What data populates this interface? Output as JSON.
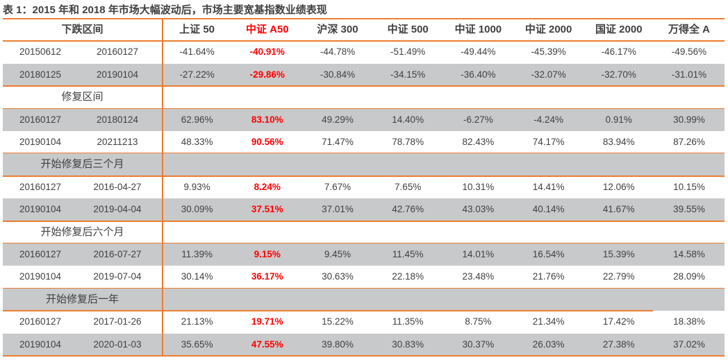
{
  "title": "表 1：2015 年和 2018 年市场大幅波动后，市场主要宽基指数业绩表现",
  "colors": {
    "accent_line": "#ed7d31",
    "row_shade": "#c8c9cb",
    "highlight": "#ff0000",
    "text": "#404040"
  },
  "header": {
    "period_label": "下跌区间",
    "columns": [
      "上证 50",
      "中证 A50",
      "沪深 300",
      "中证 500",
      "中证 1000",
      "中证 2000",
      "国证 2000",
      "万得全 A"
    ],
    "highlight_column": 1
  },
  "groups": [
    {
      "label": null,
      "rows": [
        {
          "start": "20150612",
          "end": "20160127",
          "values": [
            "-41.64%",
            "-40.91%",
            "-44.78%",
            "-51.49%",
            "-49.44%",
            "-45.39%",
            "-46.17%",
            "-49.56%"
          ]
        },
        {
          "start": "20180125",
          "end": "20190104",
          "values": [
            "-27.22%",
            "-29.86%",
            "-30.84%",
            "-34.15%",
            "-36.40%",
            "-32.07%",
            "-32.70%",
            "-31.01%"
          ]
        }
      ]
    },
    {
      "label": "修复区间",
      "rows": [
        {
          "start": "20160127",
          "end": "20180124",
          "values": [
            "62.96%",
            "83.10%",
            "49.29%",
            "14.40%",
            "-6.27%",
            "-4.24%",
            "0.91%",
            "30.99%"
          ]
        },
        {
          "start": "20190104",
          "end": "20211213",
          "values": [
            "48.33%",
            "90.56%",
            "71.47%",
            "78.78%",
            "82.43%",
            "74.17%",
            "83.94%",
            "87.26%"
          ]
        }
      ]
    },
    {
      "label": "开始修复后三个月",
      "rows": [
        {
          "start": "20160127",
          "end": "2016-04-27",
          "values": [
            "9.93%",
            "8.24%",
            "7.67%",
            "7.65%",
            "10.31%",
            "14.41%",
            "12.06%",
            "10.15%"
          ]
        },
        {
          "start": "20190104",
          "end": "2019-04-04",
          "values": [
            "30.09%",
            "37.51%",
            "37.01%",
            "42.76%",
            "43.03%",
            "40.14%",
            "41.67%",
            "39.55%"
          ]
        }
      ]
    },
    {
      "label": "开始修复后六个月",
      "rows": [
        {
          "start": "20160127",
          "end": "2016-07-27",
          "values": [
            "11.39%",
            "9.15%",
            "9.45%",
            "11.45%",
            "14.01%",
            "16.54%",
            "15.39%",
            "14.58%"
          ]
        },
        {
          "start": "20190104",
          "end": "2019-07-04",
          "values": [
            "30.14%",
            "36.17%",
            "30.63%",
            "22.18%",
            "23.48%",
            "21.76%",
            "22.79%",
            "28.09%"
          ]
        }
      ]
    },
    {
      "label": "开始修复后一年",
      "rows": [
        {
          "start": "20160127",
          "end": "2017-01-26",
          "values": [
            "21.13%",
            "19.71%",
            "15.22%",
            "11.35%",
            "8.75%",
            "21.34%",
            "17.42%",
            "18.38%"
          ]
        },
        {
          "start": "20190104",
          "end": "2020-01-03",
          "values": [
            "35.65%",
            "47.55%",
            "39.80%",
            "30.83%",
            "30.37%",
            "26.03%",
            "27.38%",
            "37.02%"
          ]
        }
      ]
    }
  ]
}
